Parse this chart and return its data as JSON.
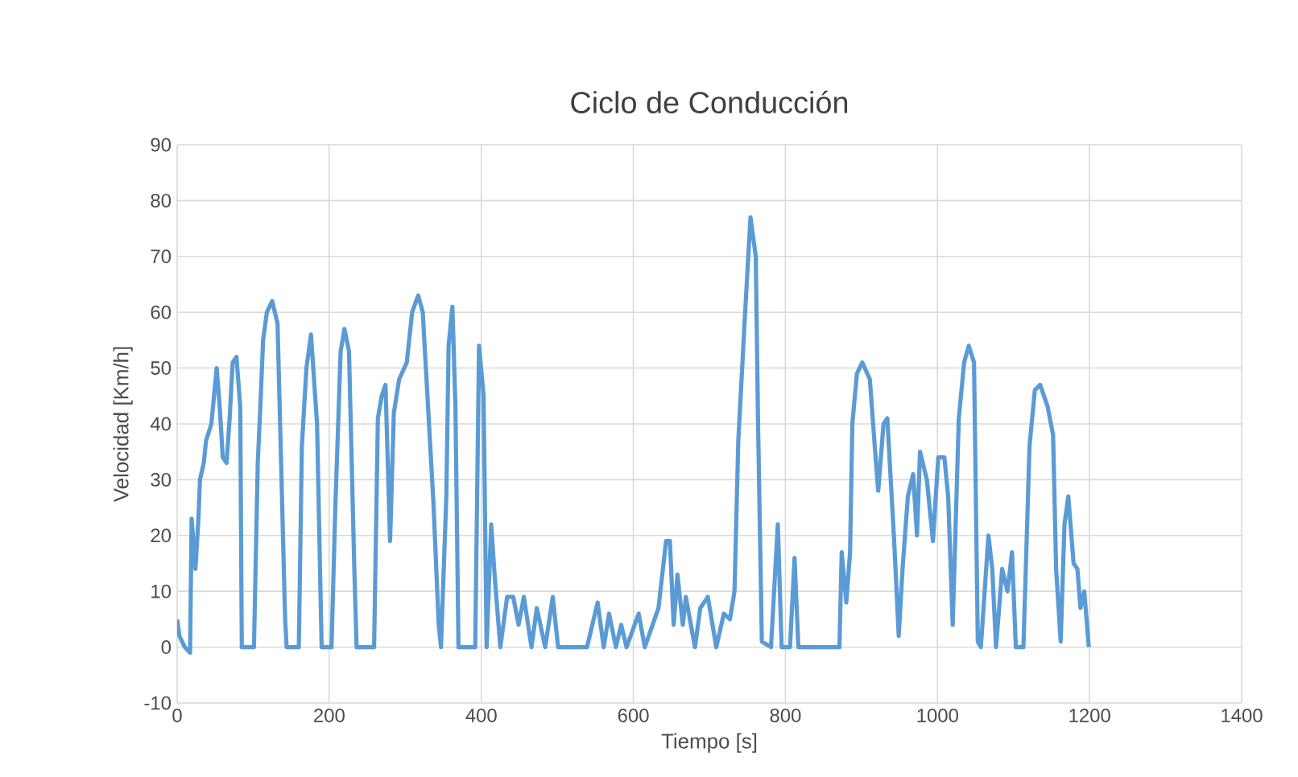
{
  "chart_data": {
    "type": "line",
    "title": "Ciclo de Conducción",
    "xlabel": "Tiempo [s]",
    "ylabel": "Velocidad [Km/h]",
    "xlim": [
      0,
      1400
    ],
    "xticks": [
      0,
      200,
      400,
      600,
      800,
      1000,
      1200,
      1400
    ],
    "ylim": [
      -10,
      90
    ],
    "yticks": [
      -10,
      0,
      10,
      20,
      30,
      40,
      50,
      60,
      70,
      80,
      90
    ],
    "grid": true,
    "marker": "none",
    "line_style": "solid",
    "series": [
      {
        "color": "#5b9bd5",
        "x": [
          0,
          3,
          10,
          17,
          19,
          24,
          28,
          30,
          35,
          38,
          45,
          52,
          56,
          60,
          65,
          69,
          73,
          78,
          83,
          85,
          101,
          106,
          110,
          113,
          118,
          125,
          132,
          142,
          144,
          160,
          164,
          170,
          176,
          184,
          190,
          203,
          208,
          215,
          220,
          226,
          233,
          236,
          259,
          264,
          269,
          274,
          280,
          285,
          292,
          302,
          309,
          317,
          323,
          330,
          337,
          344,
          347,
          354,
          357,
          362,
          366,
          370,
          392,
          397,
          403,
          407,
          413,
          418,
          425,
          434,
          442,
          449,
          456,
          466,
          473,
          484,
          494,
          501,
          539,
          553,
          561,
          568,
          577,
          584,
          591,
          607,
          615,
          633,
          643,
          648,
          653,
          658,
          665,
          669,
          681,
          688,
          698,
          709,
          719,
          727,
          733,
          738,
          747,
          754,
          761,
          764,
          769,
          781,
          790,
          795,
          806,
          812,
          817,
          864,
          871,
          874,
          880,
          885,
          888,
          894,
          901,
          911,
          918,
          922,
          929,
          934,
          943,
          949,
          954,
          961,
          968,
          973,
          977,
          986,
          994,
          1001,
          1009,
          1014,
          1020,
          1028,
          1035,
          1041,
          1048,
          1053,
          1057,
          1067,
          1072,
          1077,
          1085,
          1092,
          1098,
          1103,
          1113,
          1121,
          1128,
          1135,
          1145,
          1152,
          1156,
          1162,
          1167,
          1172,
          1179,
          1184,
          1188,
          1193,
          1199
        ],
        "values": [
          5,
          2,
          0,
          -1,
          23,
          14,
          23,
          30,
          33,
          37,
          40,
          50,
          43,
          34,
          33,
          41,
          51,
          52,
          43,
          0,
          0,
          33,
          45,
          55,
          60,
          62,
          58,
          5,
          0,
          0,
          36,
          50,
          56,
          40,
          0,
          0,
          25,
          53,
          57,
          53,
          14,
          0,
          0,
          41,
          45,
          47,
          19,
          42,
          48,
          51,
          60,
          63,
          60,
          43,
          26,
          4,
          0,
          27,
          54,
          61,
          43,
          0,
          0,
          54,
          45,
          0,
          22,
          12,
          0,
          9,
          9,
          4,
          9,
          0,
          7,
          0,
          9,
          0,
          0,
          8,
          0,
          6,
          0,
          4,
          0,
          6,
          0,
          7,
          19,
          19,
          4,
          13,
          4,
          9,
          0,
          7,
          9,
          0,
          6,
          5,
          10,
          37,
          60,
          77,
          70,
          40,
          1,
          0,
          22,
          0,
          0,
          16,
          0,
          0,
          0,
          17,
          8,
          17,
          40,
          49,
          51,
          48,
          35,
          28,
          40,
          41,
          19,
          2,
          14,
          27,
          31,
          20,
          35,
          30,
          19,
          34,
          34,
          27,
          4,
          41,
          51,
          54,
          51,
          1,
          0,
          20,
          14,
          0,
          14,
          10,
          17,
          0,
          0,
          36,
          46,
          47,
          43,
          38,
          14,
          1,
          22,
          27,
          15,
          14,
          7,
          10,
          0
        ]
      }
    ]
  }
}
